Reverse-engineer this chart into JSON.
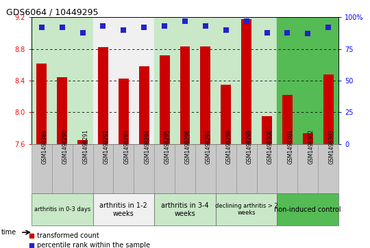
{
  "title": "GDS6064 / 10449295",
  "samples": [
    "GSM1498289",
    "GSM1498290",
    "GSM1498291",
    "GSM1498292",
    "GSM1498293",
    "GSM1498294",
    "GSM1498295",
    "GSM1498296",
    "GSM1498297",
    "GSM1498298",
    "GSM1498299",
    "GSM1498300",
    "GSM1498301",
    "GSM1498302",
    "GSM1498303"
  ],
  "transformed_count": [
    8.62,
    8.44,
    7.65,
    8.82,
    8.43,
    8.58,
    8.72,
    8.83,
    8.83,
    8.35,
    9.18,
    7.95,
    8.22,
    7.73,
    8.48
  ],
  "percentile_rank": [
    92,
    92,
    88,
    93,
    90,
    92,
    93,
    97,
    93,
    90,
    97,
    88,
    88,
    87,
    92
  ],
  "ylim_left": [
    7.6,
    9.2
  ],
  "ylim_right": [
    0,
    100
  ],
  "yticks_left": [
    7.6,
    8.0,
    8.4,
    8.8,
    9.2
  ],
  "yticks_right": [
    0,
    25,
    50,
    75,
    100
  ],
  "bar_color": "#cc0000",
  "dot_color": "#2222cc",
  "groups": [
    {
      "label": "arthritis in 0-3 days",
      "start": 0,
      "end": 3,
      "color": "#c8e8c8",
      "text_size": 6
    },
    {
      "label": "arthritis in 1-2\nweeks",
      "start": 3,
      "end": 6,
      "color": "#f0f0f0",
      "text_size": 7
    },
    {
      "label": "arthritis in 3-4\nweeks",
      "start": 6,
      "end": 9,
      "color": "#c8e8c8",
      "text_size": 7
    },
    {
      "label": "declining arthritis > 2\nweeks",
      "start": 9,
      "end": 12,
      "color": "#c8e8c8",
      "text_size": 6
    },
    {
      "label": "non-induced control",
      "start": 12,
      "end": 15,
      "color": "#55bb55",
      "text_size": 7
    }
  ],
  "bar_width": 0.5,
  "dot_size": 40,
  "sample_box_color": "#c8c8c8",
  "legend_bar_label": "transformed count",
  "legend_dot_label": "percentile rank within the sample",
  "time_label": "time"
}
